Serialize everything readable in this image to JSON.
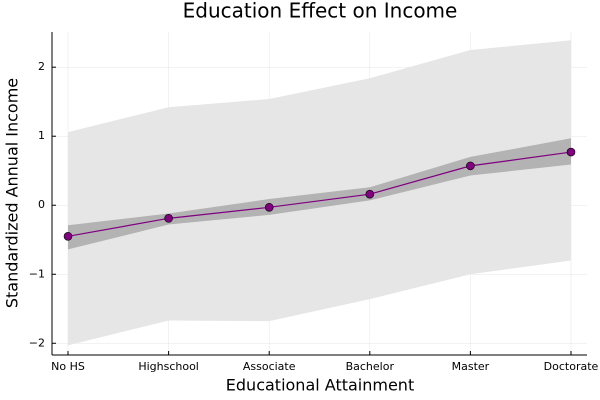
{
  "chart_data": {
    "type": "line",
    "title": "Education Effect on Income",
    "x_label": "Educational Attainment",
    "y_label": "Standardized Annual Income",
    "categories": [
      "No HS",
      "Highschool",
      "Associate",
      "Bachelor",
      "Master",
      "Doctorate"
    ],
    "values": [
      -0.45,
      -0.19,
      -0.03,
      0.16,
      0.57,
      0.77
    ],
    "color": "#800080",
    "bands": [
      {
        "color": "#e6e6e6",
        "upper": [
          1.06,
          1.42,
          1.54,
          1.84,
          2.25,
          2.39
        ],
        "lower": [
          -2.03,
          -1.67,
          -1.68,
          -1.36,
          -1.0,
          -0.8
        ]
      },
      {
        "color": "#b3b3b3",
        "upper": [
          -0.29,
          -0.12,
          0.09,
          0.26,
          0.7,
          0.97
        ],
        "lower": [
          -0.64,
          -0.28,
          -0.14,
          0.07,
          0.43,
          0.59
        ]
      }
    ],
    "ylim": [
      -2.17,
      2.51
    ],
    "yticks": [
      {
        "value": -2,
        "label": "−2"
      },
      {
        "value": -1,
        "label": "−1"
      },
      0,
      1,
      2
    ],
    "grid": true
  }
}
